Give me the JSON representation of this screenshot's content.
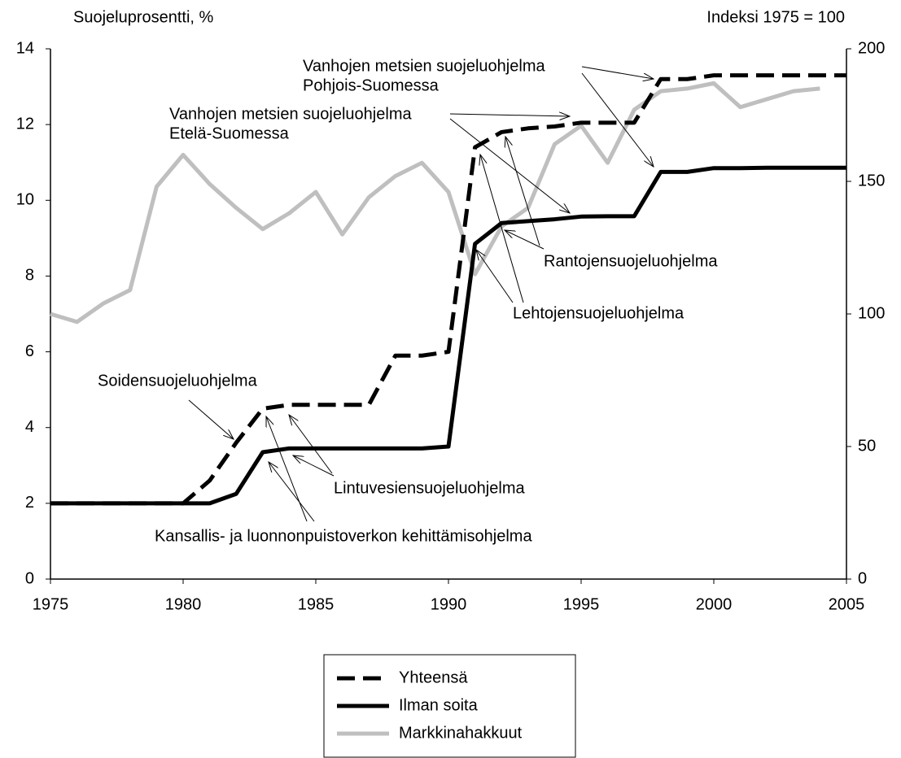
{
  "chart_data": {
    "type": "line",
    "y_label": "Suojeluprosentti, %",
    "y2_label": "Indeksi 1975 = 100",
    "x": [
      1975,
      1976,
      1977,
      1978,
      1979,
      1980,
      1981,
      1982,
      1983,
      1984,
      1985,
      1986,
      1987,
      1988,
      1989,
      1990,
      1991,
      1992,
      1993,
      1994,
      1995,
      1996,
      1997,
      1998,
      1999,
      2000,
      2001,
      2002,
      2003,
      2004,
      2005
    ],
    "series": [
      {
        "name": "Yhteensä",
        "color": "#000000",
        "style": "dashed",
        "values": [
          2,
          2,
          2,
          2,
          2,
          2,
          2.6,
          3.6,
          4.5,
          4.6,
          4.6,
          4.6,
          4.6,
          5.9,
          5.9,
          6.0,
          11.4,
          11.8,
          11.9,
          11.95,
          12.05,
          12.05,
          12.05,
          13.2,
          13.2,
          13.3,
          13.3,
          13.3,
          13.3,
          13.3,
          13.3
        ]
      },
      {
        "name": "Ilman soita",
        "color": "#000000",
        "style": "solid",
        "values": [
          2,
          2,
          2,
          2,
          2,
          2,
          2,
          2.25,
          3.35,
          3.45,
          3.45,
          3.45,
          3.45,
          3.45,
          3.45,
          3.5,
          8.85,
          9.4,
          9.45,
          9.5,
          9.57,
          9.58,
          9.58,
          10.75,
          10.75,
          10.85,
          10.85,
          10.86,
          10.86,
          10.86,
          10.86
        ]
      },
      {
        "name": "Markkinahakkuut",
        "color": "#bfbfbf",
        "style": "solid",
        "axis": "y2",
        "values": [
          100,
          97,
          104,
          109,
          148,
          160,
          149,
          140,
          132,
          138,
          146,
          130,
          144,
          152,
          157,
          146,
          115,
          133,
          140,
          164,
          171,
          157,
          177,
          184,
          185,
          187,
          178,
          181,
          184,
          185,
          null
        ]
      }
    ],
    "xlim": [
      1975,
      2005
    ],
    "xticks": [
      1975,
      1980,
      1985,
      1990,
      1995,
      2000,
      2005
    ],
    "ylim": [
      0,
      14
    ],
    "yticks": [
      0,
      2,
      4,
      6,
      8,
      10,
      12,
      14
    ],
    "y2lim": [
      0,
      200
    ],
    "y2ticks": [
      0,
      50,
      100,
      150,
      200
    ],
    "legend": "bottom",
    "annotations": [
      [
        "Vanhojen metsien suojeluohjelma",
        "Pohjois-Suomessa"
      ],
      [
        "Vanhojen metsien suojeluohjelma",
        "Etelä-Suomessa"
      ],
      [
        "Rantojensuojeluohjelma"
      ],
      [
        "Lehtojensuojeluohjelma"
      ],
      [
        "Soidensuojeluohjelma"
      ],
      [
        "Lintuvesiensuojeluohjelma"
      ],
      [
        "Kansallis- ja luonnonpuistoverkon kehittämisohjelma"
      ]
    ]
  }
}
